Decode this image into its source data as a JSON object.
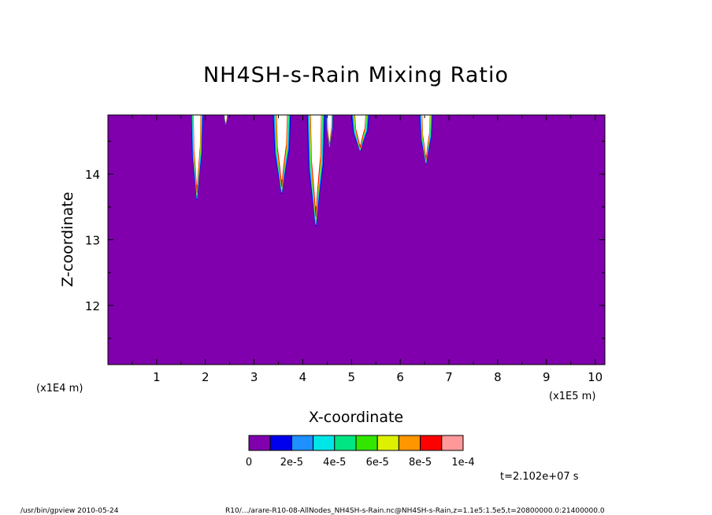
{
  "chart_data": {
    "type": "heatmap",
    "title": "NH4SH-s-Rain Mixing Ratio",
    "xlabel": "X-coordinate",
    "ylabel": "Z-coordinate",
    "x_unit_left": "(x1E4 m)",
    "x_unit_right": "(x1E5 m)",
    "xlim": [
      0,
      10.2
    ],
    "ylim": [
      11.1,
      14.9
    ],
    "xticks": [
      1,
      2,
      3,
      4,
      5,
      6,
      7,
      8,
      9,
      10
    ],
    "xtick_labels": [
      "1",
      "2",
      "3",
      "4",
      "5",
      "6",
      "7",
      "8",
      "9",
      "10"
    ],
    "yticks": [
      12,
      13,
      14
    ],
    "ytick_labels": [
      "12",
      "13",
      "14"
    ],
    "time_label": "t=2.102e+07 s",
    "colorbar": {
      "levels": [
        0,
        1e-05,
        2e-05,
        3e-05,
        4e-05,
        5e-05,
        6e-05,
        7e-05,
        8e-05,
        9e-05,
        0.0001
      ],
      "colors": [
        "#7f00ac",
        "#0000ee",
        "#1e90ff",
        "#00e6e6",
        "#00e682",
        "#32e600",
        "#dcf000",
        "#ff9600",
        "#ff0000",
        "#ff9999"
      ],
      "labels": [
        "0",
        "2e-5",
        "4e-5",
        "6e-5",
        "8e-5",
        "1e-4"
      ]
    },
    "background_color": "#7f00ac",
    "plumes": [
      {
        "center": 1.83,
        "half_width": 0.1,
        "bottom": 13.6
      },
      {
        "center": 2.42,
        "half_width": 0.03,
        "bottom": 14.75
      },
      {
        "center": 3.57,
        "half_width": 0.15,
        "bottom": 13.7
      },
      {
        "center": 4.27,
        "half_width": 0.15,
        "bottom": 13.2
      },
      {
        "center": 4.55,
        "half_width": 0.06,
        "bottom": 14.4
      },
      {
        "center": 5.18,
        "half_width": 0.15,
        "bottom": 14.35
      },
      {
        "center": 6.53,
        "half_width": 0.11,
        "bottom": 14.15
      }
    ]
  },
  "footer": {
    "left": "/usr/bin/gpview   2010-05-24",
    "right": "R10/.../arare-R10-08-AllNodes_NH4SH-s-Rain.nc@NH4SH-s-Rain,z=1.1e5:1.5e5,t=20800000.0:21400000.0"
  }
}
